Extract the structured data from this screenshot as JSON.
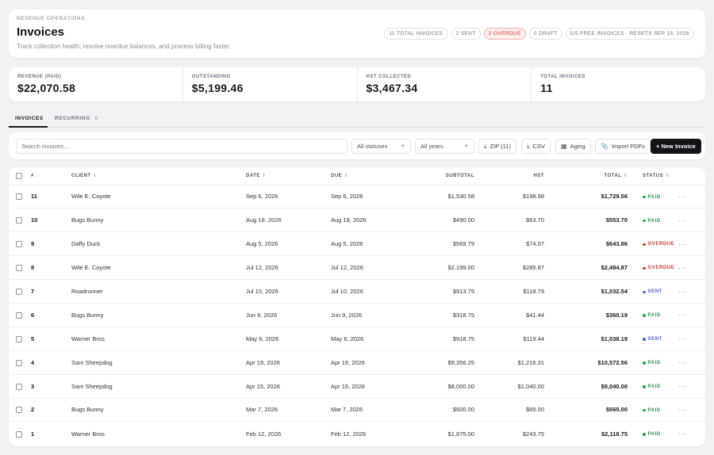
{
  "header": {
    "eyebrow": "REVENUE OPERATIONS",
    "title": "Invoices",
    "subtitle": "Track collection health, resolve overdue balances, and process billing faster.",
    "badges": [
      "11 TOTAL INVOICES",
      "2 SENT",
      "2 OVERDUE",
      "0 DRAFT",
      "5/5 FREE INVOICES · RESETS SEP 15, 2026"
    ]
  },
  "stats": [
    {
      "label": "REVENUE (PAID)",
      "value": "$22,070.58"
    },
    {
      "label": "OUTSTANDING",
      "value": "$5,199.46"
    },
    {
      "label": "HST COLLECTED",
      "value": "$3,467.34"
    },
    {
      "label": "TOTAL INVOICES",
      "value": "11"
    }
  ],
  "tabs": [
    {
      "label": "INVOICES"
    },
    {
      "label": "RECURRING",
      "count": "0"
    }
  ],
  "toolbar": {
    "search_placeholder": "Search invoices...",
    "status_select": "All statuses",
    "year_select": "All years",
    "zip_label": "ZIP (11)",
    "csv_label": "CSV",
    "aging_label": "Aging",
    "import_label": "Import PDFs",
    "new_label": "+ New Invoice"
  },
  "table": {
    "headers": {
      "num": "#",
      "client": "CLIENT",
      "date": "DATE",
      "due": "DUE",
      "subtotal": "SUBTOTAL",
      "hst": "HST",
      "total": "TOTAL",
      "status": "STATUS"
    },
    "rows": [
      {
        "num": "11",
        "client": "Wile E. Coyote",
        "date": "Sep 6, 2026",
        "due": "Sep 6, 2026",
        "subtotal": "$1,530.58",
        "hst": "$198.98",
        "total": "$1,729.56",
        "status": "PAID"
      },
      {
        "num": "10",
        "client": "Bugs Bunny",
        "date": "Aug 18, 2026",
        "due": "Aug 18, 2026",
        "subtotal": "$490.00",
        "hst": "$63.70",
        "total": "$553.70",
        "status": "PAID"
      },
      {
        "num": "9",
        "client": "Daffy Duck",
        "date": "Aug 5, 2026",
        "due": "Aug 5, 2026",
        "subtotal": "$569.79",
        "hst": "$74.07",
        "total": "$643.86",
        "status": "OVERDUE"
      },
      {
        "num": "8",
        "client": "Wile E. Coyote",
        "date": "Jul 12, 2026",
        "due": "Jul 12, 2026",
        "subtotal": "$2,199.00",
        "hst": "$285.87",
        "total": "$2,484.87",
        "status": "OVERDUE"
      },
      {
        "num": "7",
        "client": "Roadrunner",
        "date": "Jul 10, 2026",
        "due": "Jul 10, 2026",
        "subtotal": "$913.75",
        "hst": "$118.79",
        "total": "$1,032.54",
        "status": "SENT"
      },
      {
        "num": "6",
        "client": "Bugs Bunny",
        "date": "Jun 9, 2026",
        "due": "Jun 9, 2026",
        "subtotal": "$318.75",
        "hst": "$41.44",
        "total": "$360.19",
        "status": "PAID"
      },
      {
        "num": "5",
        "client": "Warner Bros",
        "date": "May 6, 2026",
        "due": "May 6, 2026",
        "subtotal": "$918.75",
        "hst": "$119.44",
        "total": "$1,038.19",
        "status": "SENT"
      },
      {
        "num": "4",
        "client": "Sam Sheepdog",
        "date": "Apr 19, 2026",
        "due": "Apr 19, 2026",
        "subtotal": "$9,356.25",
        "hst": "$1,216.31",
        "total": "$10,572.56",
        "status": "PAID"
      },
      {
        "num": "3",
        "client": "Sam Sheepdog",
        "date": "Apr 15, 2026",
        "due": "Apr 15, 2026",
        "subtotal": "$8,000.00",
        "hst": "$1,040.00",
        "total": "$9,040.00",
        "status": "PAID"
      },
      {
        "num": "2",
        "client": "Bugs Bunny",
        "date": "Mar 7, 2026",
        "due": "Mar 7, 2026",
        "subtotal": "$500.00",
        "hst": "$65.00",
        "total": "$565.00",
        "status": "PAID"
      },
      {
        "num": "1",
        "client": "Warner Bros",
        "date": "Feb 12, 2026",
        "due": "Feb 12, 2026",
        "subtotal": "$1,875.00",
        "hst": "$243.75",
        "total": "$2,118.75",
        "status": "PAID"
      }
    ]
  },
  "colors": {
    "paid": "#2f9e55",
    "overdue": "#d23a3a",
    "sent": "#5566d0",
    "primary_button": "#111317"
  }
}
